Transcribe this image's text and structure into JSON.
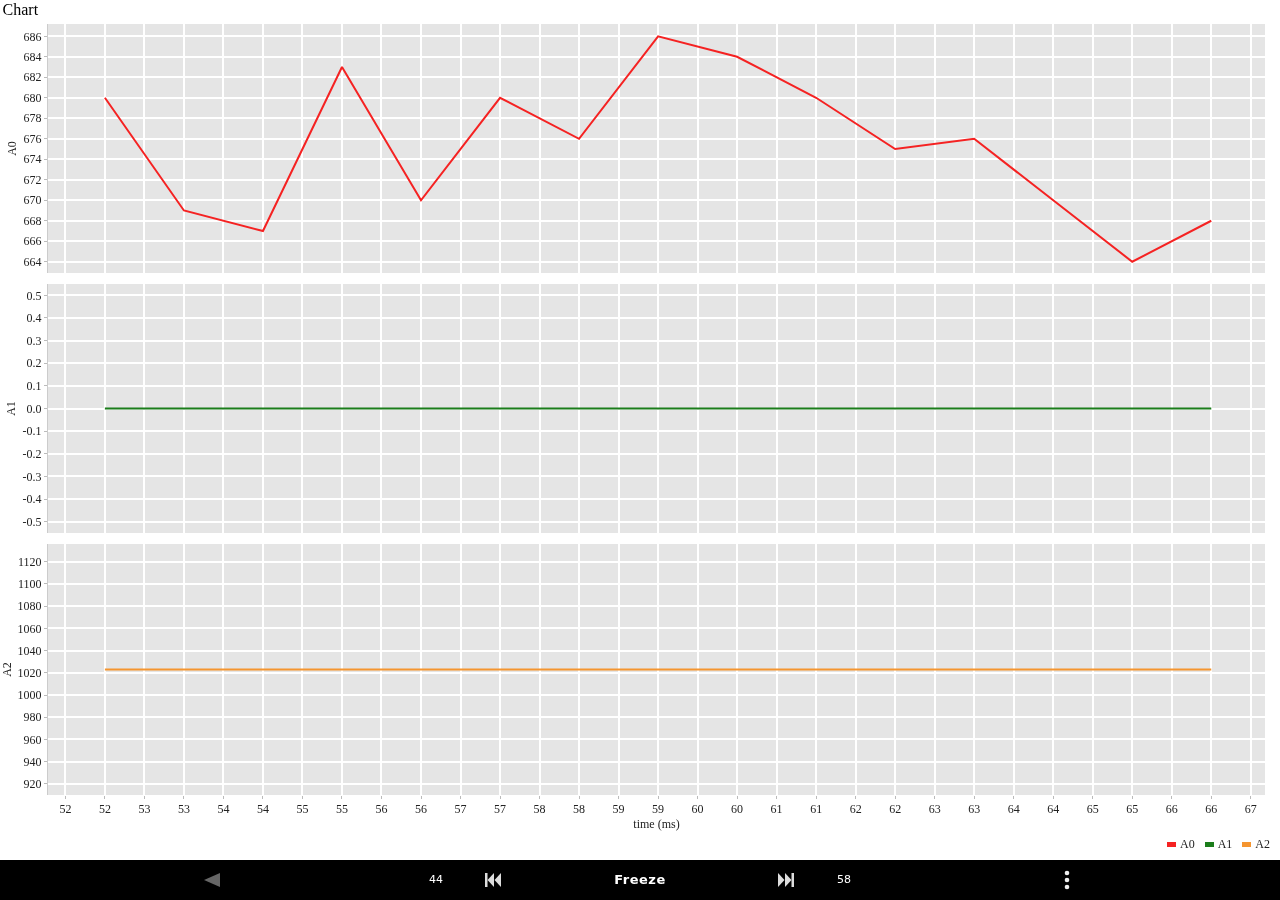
{
  "chart_data": [
    {
      "type": "line",
      "title": "Chart",
      "ylabel": "A0",
      "x": [
        52,
        53,
        54,
        55,
        56,
        57,
        58,
        59,
        60,
        61,
        62,
        63,
        64,
        65,
        66
      ],
      "series": [
        {
          "name": "A0",
          "color": "#f52222",
          "values": [
            680,
            669,
            667,
            683,
            670,
            680,
            676,
            686,
            684,
            680,
            675,
            676,
            670,
            664,
            668
          ]
        }
      ],
      "xlim": [
        51.28,
        66.68
      ],
      "xticks": [
        51.5,
        52,
        52.5,
        53,
        53.5,
        54,
        54.5,
        55,
        55.5,
        56,
        56.5,
        57,
        57.5,
        58,
        58.5,
        59,
        59.5,
        60,
        60.5,
        61,
        61.5,
        62,
        62.5,
        63,
        63.5,
        64,
        64.5,
        65,
        65.5,
        66,
        66.5
      ],
      "ylim": [
        662.9,
        687.2
      ],
      "yticks": [
        664,
        666,
        668,
        670,
        672,
        674,
        676,
        678,
        680,
        682,
        684,
        686
      ],
      "tick_labels": "y",
      "grid": true,
      "legend": "bottom right"
    },
    {
      "type": "line",
      "ylabel": "A1",
      "x": [
        52,
        53,
        54,
        55,
        56,
        57,
        58,
        59,
        60,
        61,
        62,
        63,
        64,
        65,
        66
      ],
      "series": [
        {
          "name": "A1",
          "color": "#1b7d1b",
          "values": [
            0,
            0,
            0,
            0,
            0,
            0,
            0,
            0,
            0,
            0,
            0,
            0,
            0,
            0,
            0
          ]
        }
      ],
      "xlim": [
        51.28,
        66.68
      ],
      "xticks": [
        51.5,
        52,
        52.5,
        53,
        53.5,
        54,
        54.5,
        55,
        55.5,
        56,
        56.5,
        57,
        57.5,
        58,
        58.5,
        59,
        59.5,
        60,
        60.5,
        61,
        61.5,
        62,
        62.5,
        63,
        63.5,
        64,
        64.5,
        65,
        65.5,
        66,
        66.5
      ],
      "ylim": [
        -0.55,
        0.55
      ],
      "yticks": [
        -0.5,
        -0.4,
        -0.3,
        -0.2,
        -0.1,
        {
          "value": 0,
          "label": "0.0"
        },
        0.1,
        0.2,
        0.3,
        0.4,
        0.5
      ],
      "tick_labels": "y",
      "grid": true,
      "legend": "bottom right"
    },
    {
      "type": "line",
      "xlabel": "time (ms)",
      "ylabel": "A2",
      "x": [
        52,
        53,
        54,
        55,
        56,
        57,
        58,
        59,
        60,
        61,
        62,
        63,
        64,
        65,
        66
      ],
      "series": [
        {
          "name": "A2",
          "color": "#f5952f",
          "values": [
            1023,
            1023,
            1023,
            1023,
            1023,
            1023,
            1023,
            1023,
            1023,
            1023,
            1023,
            1023,
            1023,
            1023,
            1023
          ]
        }
      ],
      "xlim": [
        51.28,
        66.68
      ],
      "xticks": [
        {
          "value": 51.5,
          "label": "52"
        },
        52,
        {
          "value": 52.5,
          "label": "53"
        },
        53,
        {
          "value": 53.5,
          "label": "54"
        },
        54,
        {
          "value": 54.5,
          "label": "55"
        },
        55,
        {
          "value": 55.5,
          "label": "56"
        },
        56,
        {
          "value": 56.5,
          "label": "57"
        },
        57,
        {
          "value": 57.5,
          "label": "58"
        },
        58,
        {
          "value": 58.5,
          "label": "59"
        },
        59,
        {
          "value": 59.5,
          "label": "60"
        },
        60,
        {
          "value": 60.5,
          "label": "61"
        },
        61,
        {
          "value": 61.5,
          "label": "62"
        },
        62,
        {
          "value": 62.5,
          "label": "63"
        },
        63,
        {
          "value": 63.5,
          "label": "64"
        },
        64,
        {
          "value": 64.5,
          "label": "65"
        },
        65,
        {
          "value": 65.5,
          "label": "66"
        },
        66,
        {
          "value": 66.5,
          "label": "67"
        }
      ],
      "ylim": [
        910,
        1136
      ],
      "yticks": [
        920,
        940,
        960,
        980,
        1000,
        1020,
        1040,
        1060,
        1080,
        1100,
        1120
      ],
      "grid": true,
      "legend": "bottom right",
      "annotations": [
        "44",
        "Freeze",
        "58"
      ]
    }
  ]
}
